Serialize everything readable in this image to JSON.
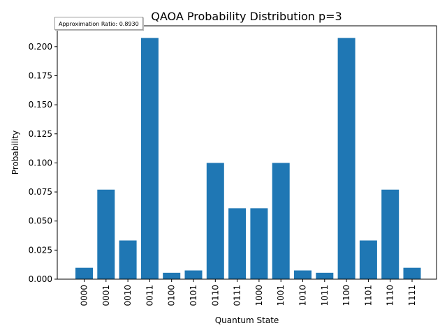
{
  "chart_data": {
    "type": "bar",
    "title": "QAOA Probability Distribution p=3",
    "xlabel": "Quantum State",
    "ylabel": "Probability",
    "categories": [
      "0000",
      "0001",
      "0010",
      "0011",
      "0100",
      "0101",
      "0110",
      "0111",
      "1000",
      "1001",
      "1010",
      "1011",
      "1100",
      "1101",
      "1110",
      "1111"
    ],
    "values": [
      0.0098,
      0.077,
      0.0333,
      0.2075,
      0.0055,
      0.0075,
      0.1,
      0.061,
      0.061,
      0.1,
      0.0075,
      0.0055,
      0.2075,
      0.0333,
      0.077,
      0.0098
    ],
    "ylim": [
      0,
      0.2179
    ],
    "yticks": [
      "0.000",
      "0.025",
      "0.050",
      "0.075",
      "0.100",
      "0.125",
      "0.150",
      "0.175",
      "0.200"
    ],
    "bar_color": "#1f77b4",
    "grid": false,
    "annotation": "Approximation Ratio: 0.8930"
  }
}
